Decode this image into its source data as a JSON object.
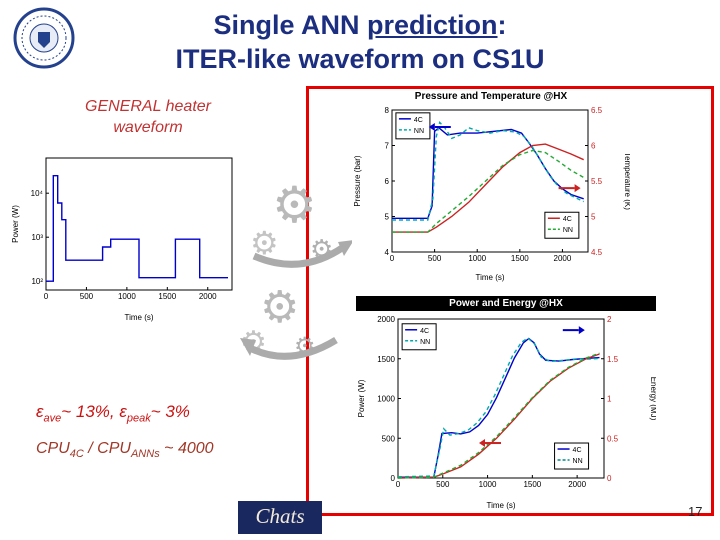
{
  "slide": {
    "title": {
      "l1a": "Single ANN ",
      "l1b": "prediction",
      "l1c": ":",
      "l2": "ITER-like waveform on CS1U"
    },
    "page_number": "17",
    "footer_logo": "Chats"
  },
  "labels": {
    "heater_l1": "GENERAL heater",
    "heater_l2": "waveform"
  },
  "stats": {
    "e1": "ε",
    "e1_sub": "ave",
    "e1_mid": "~ 13%, ",
    "e2": "ε",
    "e2_sub": "peak",
    "e2_tail": "~ 3%",
    "c1": "CPU",
    "c1_sub": "4C",
    "c2": " / CPU",
    "c2_sub": "ANNs",
    "c3": " ~ 4000"
  },
  "colors": {
    "title_navy": "#1c2e80",
    "box_border_red": "#e60000",
    "stats_red": "#cc1111",
    "cpu_maroon": "#a03828",
    "series_blue": "#0000cc",
    "series_cyan": "#00aaaa",
    "series_red": "#cc2222",
    "series_green": "#22aa33"
  },
  "chart_data": [
    {
      "id": "heater",
      "type": "line",
      "title": "",
      "xlabel": "Time (s)",
      "x_range": [
        0,
        2300
      ],
      "x_ticks": [
        0,
        500,
        1000,
        1500,
        2000
      ],
      "y_left": {
        "label": "Power (W)",
        "log": true,
        "range": [
          1.8,
          4.8
        ],
        "ticks": [
          {
            "v": 2,
            "label": "10²"
          },
          {
            "v": 3,
            "label": "10³"
          },
          {
            "v": 4,
            "label": "10⁴"
          }
        ]
      },
      "series": [
        {
          "name": "heater power",
          "axis": "left",
          "color": "#0000cc",
          "points": [
            [
              0,
              100
            ],
            [
              90,
              100
            ],
            [
              90,
              25000
            ],
            [
              145,
              25000
            ],
            [
              145,
              6000
            ],
            [
              195,
              6000
            ],
            [
              195,
              2500
            ],
            [
              245,
              2500
            ],
            [
              245,
              300
            ],
            [
              700,
              300
            ],
            [
              700,
              600
            ],
            [
              800,
              600
            ],
            [
              800,
              900
            ],
            [
              1150,
              900
            ],
            [
              1150,
              120
            ],
            [
              1600,
              120
            ],
            [
              1600,
              900
            ],
            [
              1900,
              900
            ],
            [
              1900,
              120
            ],
            [
              2250,
              120
            ]
          ]
        }
      ],
      "margins": {
        "l": 36,
        "r": 10,
        "t": 8,
        "b": 32
      }
    },
    {
      "id": "pt",
      "type": "line",
      "title": "Pressure and Temperature @HX",
      "xlabel": "Time (s)",
      "x_range": [
        0,
        2300
      ],
      "x_ticks": [
        0,
        500,
        1000,
        1500,
        2000
      ],
      "y_left": {
        "label": "Pressure (bar)",
        "range": [
          4,
          8
        ],
        "ticks": [
          4,
          5,
          6,
          7,
          8
        ]
      },
      "y_right": {
        "label": "Temperature (K)",
        "range": [
          4.5,
          6.5
        ],
        "ticks": [
          4.5,
          5,
          5.5,
          6,
          6.5
        ],
        "color": "#cc2222"
      },
      "series": [
        {
          "name": "Pressure 4C",
          "axis": "left",
          "color": "#0000cc",
          "points": [
            [
              0,
              4.95
            ],
            [
              420,
              4.95
            ],
            [
              470,
              5.3
            ],
            [
              500,
              7.4
            ],
            [
              550,
              7.5
            ],
            [
              650,
              7.3
            ],
            [
              800,
              7.35
            ],
            [
              1000,
              7.35
            ],
            [
              1200,
              7.4
            ],
            [
              1400,
              7.45
            ],
            [
              1520,
              7.35
            ],
            [
              1600,
              7.1
            ],
            [
              1700,
              6.75
            ],
            [
              1800,
              6.35
            ],
            [
              1900,
              6.0
            ],
            [
              2000,
              5.78
            ],
            [
              2100,
              5.62
            ],
            [
              2250,
              5.5
            ]
          ]
        },
        {
          "name": "Pressure NN",
          "axis": "left",
          "color": "#00aaaa",
          "dash": "4,3",
          "points": [
            [
              0,
              4.9
            ],
            [
              420,
              4.9
            ],
            [
              480,
              5.5
            ],
            [
              520,
              7.25
            ],
            [
              560,
              7.65
            ],
            [
              620,
              7.5
            ],
            [
              700,
              7.2
            ],
            [
              800,
              7.3
            ],
            [
              900,
              7.5
            ],
            [
              1000,
              7.42
            ],
            [
              1150,
              7.35
            ],
            [
              1300,
              7.42
            ],
            [
              1450,
              7.38
            ],
            [
              1550,
              7.25
            ],
            [
              1650,
              6.95
            ],
            [
              1750,
              6.55
            ],
            [
              1850,
              6.15
            ],
            [
              1950,
              5.85
            ],
            [
              2050,
              5.65
            ],
            [
              2250,
              5.42
            ]
          ]
        },
        {
          "name": "Temperature 4C",
          "axis": "right",
          "color": "#cc2222",
          "points": [
            [
              0,
              4.78
            ],
            [
              420,
              4.78
            ],
            [
              520,
              4.85
            ],
            [
              700,
              5.0
            ],
            [
              900,
              5.2
            ],
            [
              1100,
              5.45
            ],
            [
              1300,
              5.7
            ],
            [
              1500,
              5.9
            ],
            [
              1650,
              6.0
            ],
            [
              1800,
              6.02
            ],
            [
              1950,
              5.95
            ],
            [
              2100,
              5.88
            ],
            [
              2250,
              5.8
            ]
          ]
        },
        {
          "name": "Temperature NN",
          "axis": "right",
          "color": "#22aa33",
          "dash": "4,3",
          "points": [
            [
              0,
              4.78
            ],
            [
              420,
              4.78
            ],
            [
              520,
              4.9
            ],
            [
              700,
              5.08
            ],
            [
              900,
              5.28
            ],
            [
              1100,
              5.5
            ],
            [
              1300,
              5.72
            ],
            [
              1500,
              5.87
            ],
            [
              1650,
              5.93
            ],
            [
              1800,
              5.9
            ],
            [
              1950,
              5.78
            ],
            [
              2100,
              5.65
            ],
            [
              2250,
              5.55
            ]
          ]
        }
      ],
      "legends": [
        {
          "fx": 0.02,
          "fy": 0.02,
          "entries": [
            {
              "label": "4C",
              "color": "#0000cc"
            },
            {
              "label": "NN",
              "color": "#00aaaa",
              "dash": true
            }
          ]
        },
        {
          "fx": 0.78,
          "fy": 0.72,
          "entries": [
            {
              "label": "4C",
              "color": "#cc2222"
            },
            {
              "label": "NN",
              "color": "#22aa33",
              "dash": true
            }
          ]
        }
      ],
      "arrows": [
        {
          "fx": 0.3,
          "fy": 0.12,
          "dir": "left",
          "color": "#0000cc"
        },
        {
          "fx": 0.85,
          "fy": 0.55,
          "dir": "right",
          "color": "#cc2222"
        }
      ],
      "margins": {
        "l": 40,
        "r": 42,
        "t": 6,
        "b": 30
      }
    },
    {
      "id": "pe",
      "type": "line",
      "title": "Power and Energy @HX",
      "xlabel": "Time (s)",
      "x_range": [
        0,
        2300
      ],
      "x_ticks": [
        0,
        500,
        1000,
        1500,
        2000
      ],
      "y_left": {
        "label": "Power (W)",
        "range": [
          0,
          2000
        ],
        "ticks": [
          0,
          500,
          1000,
          1500,
          2000
        ]
      },
      "y_right": {
        "label": "Energy (MJ)",
        "range": [
          0,
          2
        ],
        "ticks": [
          0,
          0.5,
          1,
          1.5,
          2
        ],
        "color": "#cc2222"
      },
      "series": [
        {
          "name": "Power 4C",
          "axis": "left",
          "color": "#0000cc",
          "points": [
            [
              0,
              10
            ],
            [
              400,
              10
            ],
            [
              450,
              300
            ],
            [
              490,
              560
            ],
            [
              600,
              570
            ],
            [
              700,
              555
            ],
            [
              800,
              580
            ],
            [
              900,
              660
            ],
            [
              1000,
              800
            ],
            [
              1100,
              1010
            ],
            [
              1200,
              1260
            ],
            [
              1300,
              1510
            ],
            [
              1400,
              1700
            ],
            [
              1460,
              1755
            ],
            [
              1520,
              1700
            ],
            [
              1580,
              1560
            ],
            [
              1650,
              1480
            ],
            [
              1800,
              1470
            ],
            [
              1950,
              1490
            ],
            [
              2100,
              1505
            ],
            [
              2250,
              1515
            ]
          ]
        },
        {
          "name": "Power NN",
          "axis": "left",
          "color": "#00aaaa",
          "dash": "4,3",
          "points": [
            [
              0,
              15
            ],
            [
              400,
              25
            ],
            [
              470,
              380
            ],
            [
              510,
              620
            ],
            [
              580,
              540
            ],
            [
              680,
              560
            ],
            [
              780,
              600
            ],
            [
              880,
              690
            ],
            [
              980,
              830
            ],
            [
              1080,
              1040
            ],
            [
              1180,
              1290
            ],
            [
              1280,
              1540
            ],
            [
              1380,
              1710
            ],
            [
              1450,
              1760
            ],
            [
              1530,
              1680
            ],
            [
              1600,
              1520
            ],
            [
              1700,
              1465
            ],
            [
              1850,
              1480
            ],
            [
              2000,
              1500
            ],
            [
              2150,
              1495
            ],
            [
              2250,
              1505
            ]
          ]
        },
        {
          "name": "Energy 4C",
          "axis": "right",
          "color": "#cc2222",
          "points": [
            [
              0,
              0
            ],
            [
              400,
              0.01
            ],
            [
              500,
              0.05
            ],
            [
              700,
              0.14
            ],
            [
              900,
              0.3
            ],
            [
              1100,
              0.5
            ],
            [
              1300,
              0.74
            ],
            [
              1500,
              1.0
            ],
            [
              1700,
              1.22
            ],
            [
              1900,
              1.38
            ],
            [
              2100,
              1.5
            ],
            [
              2250,
              1.56
            ]
          ]
        },
        {
          "name": "Energy NN",
          "axis": "right",
          "color": "#22aa33",
          "dash": "4,3",
          "points": [
            [
              0,
              0
            ],
            [
              400,
              0.01
            ],
            [
              500,
              0.06
            ],
            [
              700,
              0.16
            ],
            [
              900,
              0.32
            ],
            [
              1100,
              0.52
            ],
            [
              1300,
              0.76
            ],
            [
              1500,
              1.01
            ],
            [
              1700,
              1.23
            ],
            [
              1900,
              1.39
            ],
            [
              2100,
              1.51
            ],
            [
              2250,
              1.57
            ]
          ]
        }
      ],
      "legends": [
        {
          "fx": 0.02,
          "fy": 0.03,
          "entries": [
            {
              "label": "4C",
              "color": "#0000cc"
            },
            {
              "label": "NN",
              "color": "#00aaaa",
              "dash": true
            }
          ]
        },
        {
          "fx": 0.76,
          "fy": 0.78,
          "entries": [
            {
              "label": "4C",
              "color": "#0000cc"
            },
            {
              "label": "NN",
              "color": "#008888",
              "dash": true
            }
          ]
        }
      ],
      "arrows": [
        {
          "fx": 0.8,
          "fy": 0.07,
          "dir": "right",
          "color": "#0000cc"
        },
        {
          "fx": 0.5,
          "fy": 0.78,
          "dir": "left",
          "color": "#cc2222"
        }
      ],
      "margins": {
        "l": 42,
        "r": 52,
        "t": 8,
        "b": 32
      }
    }
  ]
}
